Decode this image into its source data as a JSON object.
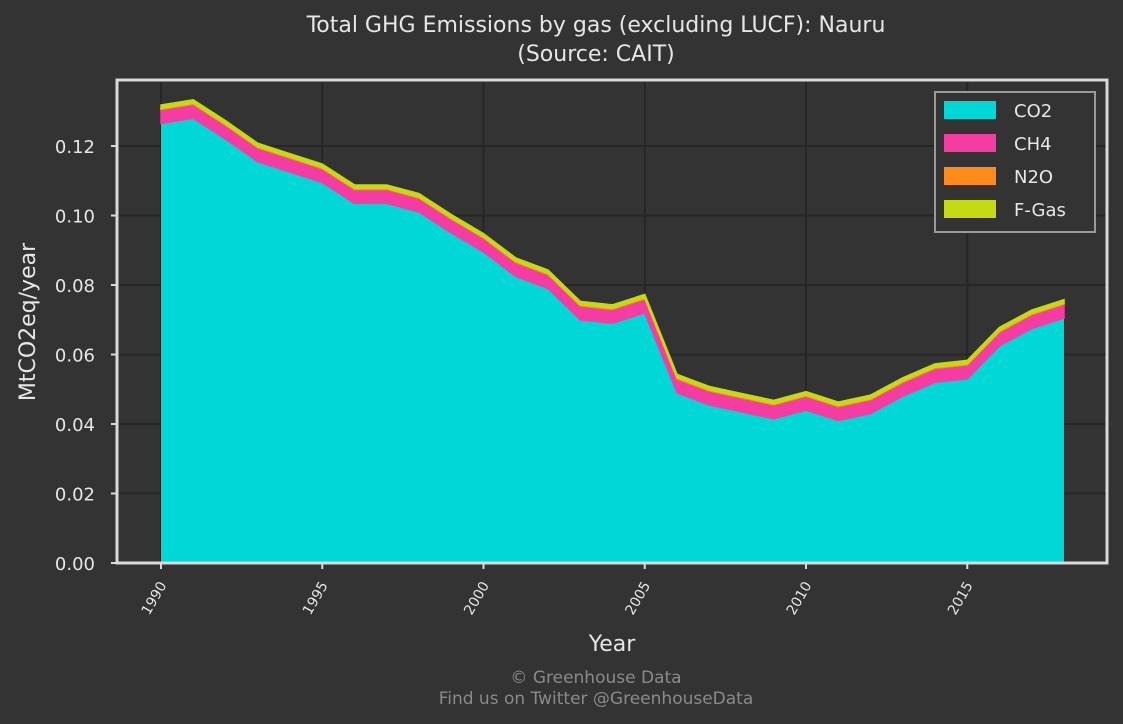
{
  "chart_data": {
    "type": "area",
    "stacked": true,
    "title": "Total GHG Emissions by gas (excluding LUCF): Nauru",
    "subtitle": "(Source: CAIT)",
    "xlabel": "Year",
    "ylabel": "MtCO2eq/year",
    "caption": [
      "© Greenhouse Data",
      "Find us on Twitter @GreenhouseData"
    ],
    "xlim": [
      1990,
      2018
    ],
    "ylim": [
      0,
      0.139
    ],
    "x_ticks": [
      1990,
      1995,
      2000,
      2005,
      2010,
      2015
    ],
    "y_ticks": [
      "0.00",
      "0.02",
      "0.04",
      "0.06",
      "0.08",
      "0.10",
      "0.12"
    ],
    "grid": true,
    "legend_position": "top-right",
    "x": [
      1990,
      1991,
      1992,
      1993,
      1994,
      1995,
      1996,
      1997,
      1998,
      1999,
      2000,
      2001,
      2002,
      2003,
      2004,
      2005,
      2006,
      2007,
      2008,
      2009,
      2010,
      2011,
      2012,
      2013,
      2014,
      2015,
      2016,
      2017,
      2018
    ],
    "series": [
      {
        "name": "CO2",
        "color": "#00d8d8",
        "values": [
          0.1265,
          0.128,
          0.122,
          0.1155,
          0.1125,
          0.1095,
          0.1035,
          0.1035,
          0.101,
          0.095,
          0.0895,
          0.0825,
          0.079,
          0.07,
          0.069,
          0.072,
          0.049,
          0.0455,
          0.0435,
          0.0415,
          0.044,
          0.041,
          0.043,
          0.048,
          0.052,
          0.053,
          0.0625,
          0.0675,
          0.0705
        ]
      },
      {
        "name": "CH4",
        "color": "#f53ca3",
        "values": [
          0.004,
          0.004,
          0.004,
          0.004,
          0.004,
          0.004,
          0.004,
          0.004,
          0.004,
          0.004,
          0.004,
          0.004,
          0.004,
          0.004,
          0.004,
          0.004,
          0.004,
          0.004,
          0.004,
          0.004,
          0.004,
          0.004,
          0.004,
          0.004,
          0.004,
          0.004,
          0.004,
          0.004,
          0.004
        ]
      },
      {
        "name": "N2O",
        "color": "#ff8c1a",
        "values": [
          0.0003,
          0.0003,
          0.0003,
          0.0003,
          0.0003,
          0.0003,
          0.0003,
          0.0003,
          0.0003,
          0.0003,
          0.0003,
          0.0003,
          0.0003,
          0.0003,
          0.0003,
          0.0003,
          0.0003,
          0.0003,
          0.0003,
          0.0003,
          0.0003,
          0.0003,
          0.0003,
          0.0003,
          0.0003,
          0.0003,
          0.0003,
          0.0003,
          0.0003
        ]
      },
      {
        "name": "F-Gas",
        "color": "#c5d914",
        "values": [
          0.001,
          0.001,
          0.001,
          0.001,
          0.001,
          0.001,
          0.001,
          0.001,
          0.001,
          0.001,
          0.001,
          0.001,
          0.001,
          0.001,
          0.001,
          0.001,
          0.001,
          0.001,
          0.001,
          0.001,
          0.001,
          0.001,
          0.001,
          0.001,
          0.001,
          0.001,
          0.001,
          0.001,
          0.001
        ]
      }
    ]
  },
  "colors": {
    "background": "#333333",
    "panel_border": "#d9d9d9",
    "grid": "#262626",
    "legend_border": "#9a9a9a"
  }
}
